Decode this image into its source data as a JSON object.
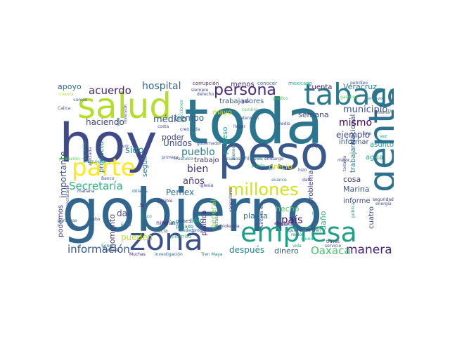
{
  "words": [
    {
      "text": "hoy",
      "color": "#3e4a89"
    },
    {
      "text": "gobierno",
      "color": "#31678e"
    },
    {
      "text": "toda",
      "color": "#2b758e"
    },
    {
      "text": "peso",
      "color": "#38598c"
    },
    {
      "text": "salud",
      "color": "#b5de2b"
    },
    {
      "text": "zona",
      "color": "#3b518b"
    },
    {
      "text": "gente",
      "color": "#2c728e"
    },
    {
      "text": "tabaco",
      "color": "#2a798e"
    },
    {
      "text": "empresa",
      "color": "#1fa187"
    },
    {
      "text": "parte",
      "color": "#fde725"
    },
    {
      "text": "persona",
      "color": "#482878"
    },
    {
      "text": "millones",
      "color": "#d2e21b"
    },
    {
      "text": "información",
      "color": "#365c8d"
    },
    {
      "text": "manera",
      "color": "#482173"
    },
    {
      "text": "Oaxaca",
      "color": "#4ac16d"
    },
    {
      "text": "Secretaría",
      "color": "#2db27d"
    },
    {
      "text": "municipio",
      "color": "#3b528b"
    },
    {
      "text": "acuerdo",
      "color": "#482475"
    },
    {
      "text": "hospital",
      "color": "#31688e"
    },
    {
      "text": "mismo",
      "color": "#440154"
    },
    {
      "text": "ejemplo",
      "color": "#3e4989"
    },
    {
      "text": "médico",
      "color": "#39558c"
    },
    {
      "text": "pueblo",
      "color": "#287d8e"
    },
    {
      "text": "haciendo",
      "color": "#404387"
    },
    {
      "text": "años",
      "color": "#443983"
    },
    {
      "text": "bien",
      "color": "#472f7d"
    },
    {
      "text": "Pemex",
      "color": "#2e6f8e"
    },
    {
      "text": "Unidos",
      "color": "#3d4d8a"
    },
    {
      "text": "tiempo",
      "color": "#35608d"
    },
    {
      "text": "país",
      "color": "#481a6c"
    },
    {
      "text": "hecho",
      "color": "#5ec962"
    },
    {
      "text": "pueden",
      "color": "#bddf26"
    },
    {
      "text": "después",
      "color": "#25848e"
    },
    {
      "text": "dinero",
      "color": "#34618d"
    },
    {
      "text": "planta",
      "color": "#2a768e"
    },
    {
      "text": "Marina",
      "color": "#39558c"
    },
    {
      "text": "semana",
      "color": "#3e4989"
    },
    {
      "text": "cuenta",
      "color": "#471063"
    },
    {
      "text": "Veracruz",
      "color": "#2a788e"
    },
    {
      "text": "apoyo",
      "color": "#31688e"
    },
    {
      "text": "menos",
      "color": "#472d7b"
    },
    {
      "text": "sido",
      "color": "#26828e"
    },
    {
      "text": "poder",
      "color": "#404688"
    },
    {
      "text": "mayo",
      "color": "#c8e020"
    },
    {
      "text": "dar",
      "color": "#3b528b"
    },
    {
      "text": "daño",
      "color": "#2fb47c"
    },
    {
      "text": "precio",
      "color": "#e5e419"
    },
    {
      "text": "cosa",
      "color": "#46337e"
    },
    {
      "text": "agua",
      "color": "#1f9e89"
    },
    {
      "text": "asunto",
      "color": "#21918c"
    },
    {
      "text": "informar",
      "color": "#38588c"
    },
    {
      "text": "informe",
      "color": "#3e4c8a"
    },
    {
      "text": "trabajo",
      "color": "#472f7d"
    },
    {
      "text": "sólo",
      "color": "#25ac82"
    },
    {
      "text": "trabajadores",
      "color": "#34618d"
    },
    {
      "text": "momento",
      "color": "#453882"
    },
    {
      "text": "importante",
      "color": "#3b528b"
    },
    {
      "text": "producto",
      "color": "#2c728e"
    },
    {
      "text": "seguir",
      "color": "#2e6e8e"
    },
    {
      "text": "general",
      "color": "#7ad151"
    },
    {
      "text": "política",
      "color": "#482475"
    },
    {
      "text": "problema",
      "color": "#3f4788"
    },
    {
      "text": "proceso",
      "color": "#1fa088"
    },
    {
      "text": "trabajando",
      "color": "#2c718e"
    },
    {
      "text": "Nacional",
      "color": "#3e4c8a"
    },
    {
      "text": "cuatro",
      "color": "#404688"
    },
    {
      "text": "podemos",
      "color": "#453882"
    },
    {
      "text": "ir",
      "color": "#46327e"
    },
    {
      "text": "Chiapas",
      "color": "#287c8e"
    },
    {
      "text": "corrupción",
      "color": "#482878"
    },
    {
      "text": "conocer",
      "color": "#2a788e"
    },
    {
      "text": "mexicano",
      "color": "#22a884"
    },
    {
      "text": "petróleo",
      "color": "#3e4989"
    },
    {
      "text": "centavos",
      "color": "#27808e"
    },
    {
      "text": "gasolina",
      "color": "#5ec962"
    },
    {
      "text": "ningún",
      "color": "#481769"
    },
    {
      "text": "hacia",
      "color": "#2d708e"
    },
    {
      "text": "permiso",
      "color": "#35b779"
    },
    {
      "text": "países",
      "color": "#404387"
    },
    {
      "text": "pasado",
      "color": "#24868e"
    },
    {
      "text": "Sonora",
      "color": "#2a788e"
    },
    {
      "text": "investigación",
      "color": "#355f8d"
    },
    {
      "text": "Tren Maya",
      "color": "#26828e"
    },
    {
      "text": "Muchas",
      "color": "#482677"
    },
    {
      "text": "Puchula",
      "color": "#3e4a89"
    },
    {
      "text": "mañana",
      "color": "#443a83"
    },
    {
      "text": "Banco",
      "color": "#3f4788"
    },
    {
      "text": "posible",
      "color": "#453781"
    },
    {
      "text": "Falta",
      "color": "#2a788e"
    },
    {
      "text": "cinco",
      "color": "#21918c"
    },
    {
      "text": "educación",
      "color": "#1fa187"
    },
    {
      "text": "afectada",
      "color": "#404688"
    },
    {
      "text": "vamos",
      "color": "#38588c"
    },
    {
      "text": "Calica",
      "color": "#3b528b"
    },
    {
      "text": "cuanta",
      "color": "#b8de29"
    },
    {
      "text": "inversión",
      "color": "#3e4a89"
    },
    {
      "text": "vida",
      "color": "#2a788e"
    },
    {
      "text": "siempre",
      "color": "#414287"
    },
    {
      "text": "derecho",
      "color": "#3e4c8a"
    },
    {
      "text": "elecciones",
      "color": "#2db27d"
    },
    {
      "text": "gas",
      "color": "#482878"
    },
    {
      "text": "recursos",
      "color": "#38598c"
    },
    {
      "text": "embargo",
      "color": "#3e4989"
    },
    {
      "text": "medio",
      "color": "#3e4c8a"
    },
    {
      "text": "quieren",
      "color": "#3b528b"
    },
    {
      "text": "ahorita",
      "color": "#481467"
    },
    {
      "text": "mundo",
      "color": "#25ac82"
    },
    {
      "text": "mayor",
      "color": "#46327e"
    },
    {
      "text": "región",
      "color": "#2a788e"
    },
    {
      "text": "través",
      "color": "#482475"
    },
    {
      "text": "servicio",
      "color": "#3e4a89"
    },
    {
      "text": "seguridad",
      "color": "#46327e"
    },
    {
      "text": "energía",
      "color": "#3e4a89"
    },
    {
      "text": "pública",
      "color": "#1fa187"
    },
    {
      "text": "Huatulco",
      "color": "#31688e"
    },
    {
      "text": "primera",
      "color": "#3e4989"
    },
    {
      "text": "último",
      "color": "#2c728e"
    },
    {
      "text": "favor",
      "color": "#3b528b"
    },
    {
      "text": "costa",
      "color": "#404688"
    },
    {
      "text": "creo",
      "color": "#3f4788"
    },
    {
      "text": "cada",
      "color": "#355f8d"
    },
    {
      "text": "aunque",
      "color": "#3e4989"
    },
    {
      "text": "mejor",
      "color": "#453882"
    },
    {
      "text": "hizo",
      "color": "#3b528b"
    },
    {
      "text": "dato",
      "color": "#46327e"
    },
    {
      "text": "avance",
      "color": "#2c728e"
    },
    {
      "text": "pueda",
      "color": "#20a386"
    },
    {
      "text": "quiero",
      "color": "#3e4c8a"
    },
    {
      "text": "tipo",
      "color": "#2a788e"
    },
    {
      "text": "misma",
      "color": "#3e4989"
    },
    {
      "text": "sino",
      "color": "#404688"
    },
    {
      "text": "vez",
      "color": "#20a386"
    },
    {
      "text": "todavía",
      "color": "#3e4989"
    },
    {
      "text": "público",
      "color": "#4ac16d"
    },
    {
      "text": "atención",
      "color": "#3b528b"
    },
    {
      "text": "siguiente",
      "color": "#1fa187"
    },
    {
      "text": "cabo",
      "color": "#3f4788"
    },
    {
      "text": "dólares",
      "color": "#2c728e"
    },
    {
      "text": "violencia",
      "color": "#453882"
    },
    {
      "text": "Ciudad",
      "color": "#2c728e"
    },
    {
      "text": "programa",
      "color": "#3e4989"
    },
    {
      "text": "San",
      "color": "#2a788e"
    },
    {
      "text": "Quintana Roo",
      "color": "#404688"
    },
    {
      "text": "incluso",
      "color": "#3b528b"
    },
    {
      "text": "vapeadores",
      "color": "#46327e"
    },
    {
      "text": "Iba",
      "color": "#2a788e"
    },
    {
      "text": "Miren",
      "color": "#3e4989"
    },
    {
      "text": "vida",
      "color": "#20a386"
    },
    {
      "text": "secretario",
      "color": "#3e4989"
    },
    {
      "text": "personas",
      "color": "#2c728e"
    },
    {
      "text": "cambio",
      "color": "#4ac16d"
    },
    {
      "text": "gobernador",
      "color": "#3b528b"
    },
    {
      "text": "bienestar",
      "color": "#2a788e"
    },
    {
      "text": "población",
      "color": "#5ec962"
    },
    {
      "text": "iglesia",
      "color": "#453882"
    },
    {
      "text": "llegar",
      "color": "#3e4c8a"
    }
  ]
}
